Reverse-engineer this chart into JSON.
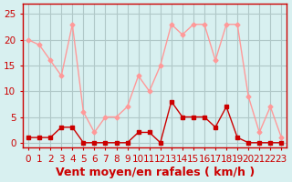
{
  "x": [
    0,
    1,
    2,
    3,
    4,
    5,
    6,
    7,
    8,
    9,
    10,
    11,
    12,
    13,
    14,
    15,
    16,
    17,
    18,
    19,
    20,
    21,
    22,
    23
  ],
  "avg_wind": [
    1,
    1,
    1,
    3,
    3,
    0,
    0,
    0,
    0,
    0,
    2,
    2,
    0,
    8,
    5,
    5,
    5,
    3,
    7,
    1,
    0,
    0,
    0,
    0
  ],
  "gust_wind": [
    20,
    19,
    16,
    13,
    23,
    6,
    2,
    5,
    5,
    7,
    13,
    10,
    15,
    23,
    21,
    23,
    23,
    16,
    23,
    23,
    9,
    2,
    7,
    1
  ],
  "avg_color": "#cc0000",
  "gust_color": "#ff9999",
  "bg_color": "#d8f0f0",
  "grid_color": "#b0c8c8",
  "xlabel": "Vent moyen/en rafales ( km/h )",
  "ylabel_ticks": [
    0,
    5,
    10,
    15,
    20,
    25
  ],
  "ylim": [
    -1,
    27
  ],
  "xlim": [
    -0.5,
    23.5
  ],
  "xlabel_fontsize": 9,
  "tick_fontsize": 7.5
}
